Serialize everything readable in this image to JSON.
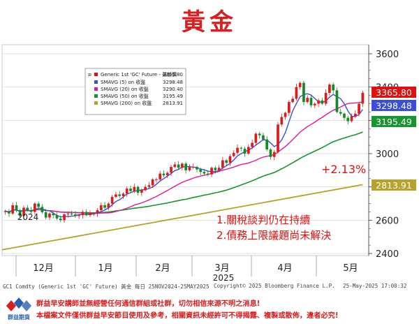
{
  "title": "黃金",
  "chart_data": {
    "type": "candlestick",
    "y_ticks": [
      2400,
      2600,
      2800,
      3000,
      3200,
      3400,
      3600
    ],
    "ylim": [
      2380,
      3690
    ],
    "x_month_labels": [
      "12月",
      "1月",
      "2月",
      "3月",
      "4月",
      "5月"
    ],
    "x_year_labels": [
      "2024",
      "2025"
    ],
    "legend": {
      "header": "Generic 1st 'GC' Future - 最新價",
      "header_value": "3365.80",
      "items": [
        {
          "label": "SMAVG (5)  on 收盤",
          "value": "3298.48",
          "color": "#3a4fd8"
        },
        {
          "label": "SMAVG (20)  on 收盤",
          "value": "3290.40",
          "color": "#e0189a"
        },
        {
          "label": "SMAVG (50)  on 收盤",
          "value": "3195.49",
          "color": "#17952e"
        },
        {
          "label": "SMAVG (200)  on 收盤",
          "value": "2813.91",
          "color": "#b8a228"
        }
      ],
      "header_color": "#e01010"
    },
    "price_tags": [
      {
        "value": 3365.8,
        "text": "3365.80",
        "color": "#e01010"
      },
      {
        "value": 3298.48,
        "text": "3298.48",
        "color": "#3a4fd8"
      },
      {
        "value": 3195.49,
        "text": "3195.49",
        "color": "#17952e"
      },
      {
        "value": 2813.91,
        "text": "2813.91",
        "color": "#b8a228"
      }
    ],
    "annotations": {
      "change": "+2.13%",
      "note1": "1.關稅談判仍在持續",
      "note2": "2.債務上限議題尚未解決"
    },
    "closes": [
      2655,
      2640,
      2690,
      2660,
      2625,
      2675,
      2660,
      2650,
      2700,
      2680,
      2648,
      2616,
      2640,
      2630,
      2610,
      2600,
      2635,
      2640,
      2635,
      2625,
      2630,
      2650,
      2630,
      2640,
      2640,
      2660,
      2690,
      2675,
      2700,
      2740,
      2755,
      2745,
      2760,
      2790,
      2775,
      2800,
      2765,
      2780,
      2800,
      2810,
      2845,
      2845,
      2880,
      2870,
      2885,
      2920,
      2935,
      2915,
      2940,
      2900,
      2920,
      2920,
      2905,
      2890,
      2880,
      2875,
      2915,
      2900,
      2915,
      2960,
      2945,
      2985,
      3005,
      3035,
      3030,
      3000,
      3040,
      3065,
      3120,
      3110,
      3085,
      3025,
      2980,
      3010,
      3175,
      3220,
      3245,
      3310,
      3330,
      3400,
      3425,
      3310,
      3335,
      3290,
      3300,
      3320,
      3300,
      3365,
      3415,
      3380,
      3250,
      3240,
      3215,
      3195,
      3225,
      3240,
      3300,
      3365.8
    ],
    "colors": {
      "up": "#d91c1c",
      "down": "#158a24",
      "grid": "#d5d5d5",
      "accent": "#d81e1e"
    }
  },
  "footer": {
    "source": "GC1 Comdty (Generic 1st 'GC' Future) 黃金  每日 25NOV2024-25MAY2025",
    "copyright": "Copyright© 2025 Bloomberg Finance L.P.",
    "timestamp": "25-May-2025 17:00:32"
  },
  "disclaimer": {
    "line1": "群益早安講師並無經營任何通信群組或社群，切勿相信來源不明之消息!",
    "line2": "本檔案文件僅供群益早安節目使用及參考，相關資訊未經許可不得揭露、複製或散佈，違者必究!",
    "logo_text": "群益期貨"
  }
}
